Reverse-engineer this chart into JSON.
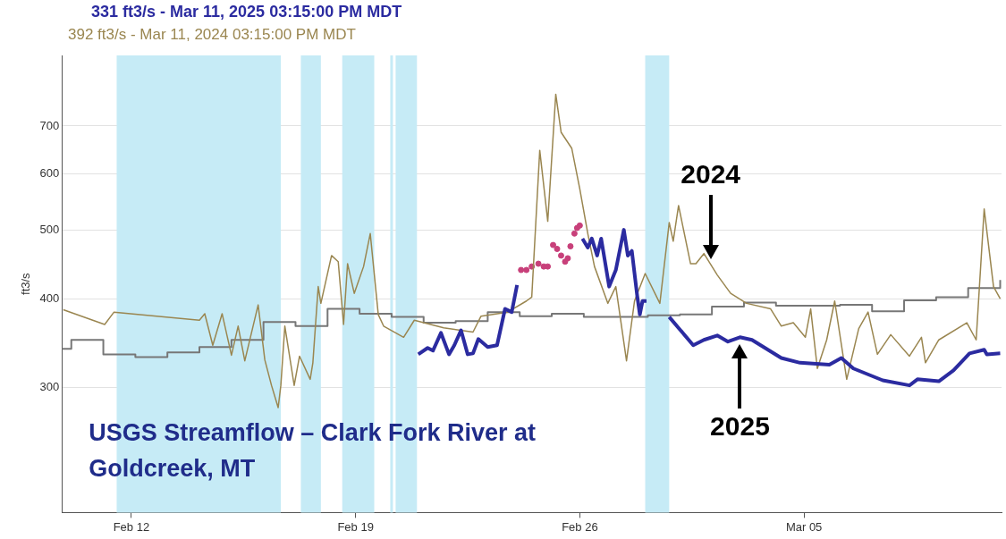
{
  "chart_data": {
    "type": "line",
    "ylabel": "ft3/s",
    "log": "y",
    "grid": "y",
    "legend": false,
    "marker": "none",
    "xlim": [
      "2025-02-09T20:00",
      "2025-03-11T04:00"
    ],
    "xticks": [
      {
        "value": "2025-02-12",
        "label": "Feb 12"
      },
      {
        "value": "2025-02-19",
        "label": "Feb 19"
      },
      {
        "value": "2025-02-26",
        "label": "Feb 26"
      },
      {
        "value": "2025-03-05",
        "label": "Mar 05"
      }
    ],
    "ylim": [
      200,
      880
    ],
    "yticks": [
      300,
      400,
      500,
      600,
      700
    ],
    "title": "USGS Streamflow – Clark Fork River at Goldcreek, MT",
    "annotations": [
      "331 ft3/s - Mar 11, 2025 03:15:00 PM MDT",
      "392 ft3/s - Mar 11, 2024 03:15:00 PM MDT",
      {
        "text": "2024",
        "x": "2025-03-02T02:00",
        "y": 447
      },
      {
        "text": "2025",
        "x": "2025-03-03T00:00",
        "y": 353
      }
    ],
    "bands": [
      {
        "axis": "x",
        "from": "2025-02-11T13:00",
        "to": "2025-02-16T16:00",
        "color": "#c6ebf6"
      },
      {
        "axis": "x",
        "from": "2025-02-17T07:00",
        "to": "2025-02-17T22:00",
        "color": "#c6ebf6"
      },
      {
        "axis": "x",
        "from": "2025-02-18T14:00",
        "to": "2025-02-19T14:00",
        "color": "#c6ebf6"
      },
      {
        "axis": "x",
        "from": "2025-02-20T02:00",
        "to": "2025-02-20T04:00",
        "color": "#c6ebf6"
      },
      {
        "axis": "x",
        "from": "2025-02-20T06:00",
        "to": "2025-02-20T22:00",
        "color": "#c6ebf6"
      },
      {
        "axis": "x",
        "from": "2025-02-28T01:00",
        "to": "2025-02-28T19:00",
        "color": "#c6ebf6"
      }
    ],
    "series": [
      {
        "type": "line",
        "color": "#2b2ba0",
        "x": [
          "2025-02-20T23:00",
          "2025-02-21T06:00",
          "2025-02-21T10:00",
          "2025-02-21T16:00",
          "2025-02-21T22:00",
          "2025-02-22T02:00",
          "2025-02-22T07:00",
          "2025-02-22T12:00",
          "2025-02-22T16:00",
          "2025-02-22T20:00",
          "2025-02-23T03:00",
          "2025-02-23T10:00",
          "2025-02-23T16:00",
          "2025-02-23T21:00",
          "2025-02-24T01:00",
          "2025-02-25T00:00",
          "2025-02-26T02:00",
          "2025-02-26T06:00",
          "2025-02-26T09:00",
          "2025-02-26T13:00",
          "2025-02-26T16:00",
          "2025-02-26T22:00",
          "2025-02-27T03:00",
          "2025-02-27T09:00",
          "2025-02-27T12:00",
          "2025-02-27T15:00",
          "2025-02-27T19:00",
          "2025-02-27T21:00",
          "2025-02-27T23:00",
          "2025-02-28T02:00",
          "2025-02-28T10:00",
          "2025-02-28T19:00",
          "2025-03-01T13:00",
          "2025-03-01T21:00",
          "2025-03-02T07:00",
          "2025-03-02T15:00",
          "2025-03-03T00:00",
          "2025-03-03T09:00",
          "2025-03-04T07:00",
          "2025-03-04T21:00",
          "2025-03-05T19:00",
          "2025-03-06T04:00",
          "2025-03-06T13:00",
          "2025-03-07T11:00",
          "2025-03-08T07:00",
          "2025-03-08T13:00",
          "2025-03-09T05:00",
          "2025-03-09T16:00",
          "2025-03-10T04:00",
          "2025-03-10T15:00",
          "2025-03-10T17:00",
          "2025-03-11T03:00"
        ],
        "values": [
          334,
          341,
          338,
          358,
          334,
          344,
          361,
          334,
          335,
          351,
          342,
          344,
          387,
          383,
          418,
          null,
          486,
          472,
          486,
          460,
          486,
          416,
          439,
          500,
          460,
          467,
          404,
          380,
          397,
          397,
          null,
          377,
          344,
          350,
          355,
          348,
          353,
          350,
          330,
          325,
          323,
          330,
          319,
          307,
          302,
          308,
          306,
          317,
          335,
          339,
          334,
          335
        ]
      },
      {
        "type": "line",
        "color": "#9a8650",
        "x": [
          "2025-02-09T21:00",
          "2025-02-11T04:00",
          "2025-02-11T11:00",
          "2025-02-14T03:00",
          "2025-02-14T07:00",
          "2025-02-14T13:00",
          "2025-02-14T20:00",
          "2025-02-15T03:00",
          "2025-02-15T08:00",
          "2025-02-15T13:00",
          "2025-02-15T23:00",
          "2025-02-16T04:00",
          "2025-02-16T09:00",
          "2025-02-16T14:00",
          "2025-02-16T16:00",
          "2025-02-16T19:00",
          "2025-02-17T02:00",
          "2025-02-17T06:00",
          "2025-02-17T14:00",
          "2025-02-17T16:00",
          "2025-02-17T20:00",
          "2025-02-17T22:00",
          "2025-02-18T06:00",
          "2025-02-18T11:00",
          "2025-02-18T15:00",
          "2025-02-18T18:00",
          "2025-02-18T23:00",
          "2025-02-19T06:00",
          "2025-02-19T11:00",
          "2025-02-19T17:00",
          "2025-02-19T21:00",
          "2025-02-20T12:00",
          "2025-02-20T20:00",
          "2025-02-21T18:00",
          "2025-02-22T16:00",
          "2025-02-22T22:00",
          "2025-02-23T18:00",
          "2025-02-24T08:00",
          "2025-02-24T12:00",
          "2025-02-24T18:00",
          "2025-02-25T00:00",
          "2025-02-25T06:00",
          "2025-02-25T10:00",
          "2025-02-25T18:00",
          "2025-02-26T00:00",
          "2025-02-26T06:00",
          "2025-02-26T11:00",
          "2025-02-26T21:00",
          "2025-02-27T03:00",
          "2025-02-27T11:00",
          "2025-02-27T17:00",
          "2025-02-28T01:00",
          "2025-02-28T12:00",
          "2025-02-28T19:00",
          "2025-02-28T22:00",
          "2025-03-01T02:00",
          "2025-03-01T11:00",
          "2025-03-01T15:00",
          "2025-03-01T21:00",
          "2025-03-02T07:00",
          "2025-03-02T17:00",
          "2025-03-03T05:00",
          "2025-03-03T23:00",
          "2025-03-04T07:00",
          "2025-03-04T16:00",
          "2025-03-05T01:00",
          "2025-03-05T05:00",
          "2025-03-05T10:00",
          "2025-03-05T17:00",
          "2025-03-05T23:00",
          "2025-03-06T08:00",
          "2025-03-06T17:00",
          "2025-03-07T00:00",
          "2025-03-07T07:00",
          "2025-03-07T17:00",
          "2025-03-08T07:00",
          "2025-03-08T16:00",
          "2025-03-08T19:00",
          "2025-03-09T05:00",
          "2025-03-10T02:00",
          "2025-03-10T09:00",
          "2025-03-10T15:00",
          "2025-03-10T22:00",
          "2025-03-11T03:00"
        ],
        "values": [
          386,
          368,
          383,
          373,
          381,
          344,
          381,
          333,
          366,
          327,
          392,
          328,
          302,
          281,
          302,
          366,
          302,
          332,
          308,
          325,
          416,
          394,
          460,
          451,
          368,
          448,
          407,
          444,
          494,
          380,
          366,
          353,
          373,
          364,
          359,
          378,
          383,
          397,
          402,
          647,
          514,
          776,
          686,
          651,
          571,
          494,
          444,
          394,
          416,
          327,
          397,
          434,
          394,
          512,
          482,
          541,
          448,
          448,
          463,
          432,
          407,
          394,
          387,
          366,
          370,
          353,
          387,
          319,
          350,
          397,
          308,
          363,
          383,
          334,
          356,
          332,
          353,
          325,
          350,
          370,
          350,
          535,
          416,
          400
        ]
      },
      {
        "type": "step",
        "color": "#777777",
        "x": [
          "2025-02-09T20:00",
          "2025-02-10T03:00",
          "2025-02-11T03:00",
          "2025-02-12T03:00",
          "2025-02-13T03:00",
          "2025-02-14T03:00",
          "2025-02-15T03:00",
          "2025-02-16T03:00",
          "2025-02-17T03:00",
          "2025-02-18T03:00",
          "2025-02-19T03:00",
          "2025-02-20T03:00",
          "2025-02-21T03:00",
          "2025-02-22T03:00",
          "2025-02-23T03:00",
          "2025-02-24T03:00",
          "2025-02-25T03:00",
          "2025-02-26T03:00",
          "2025-02-27T03:00",
          "2025-02-28T03:00",
          "2025-03-01T03:00",
          "2025-03-02T03:00",
          "2025-03-03T03:00",
          "2025-03-04T03:00",
          "2025-03-05T03:00",
          "2025-03-06T03:00",
          "2025-03-07T03:00",
          "2025-03-08T03:00",
          "2025-03-09T03:00",
          "2025-03-10T03:00",
          "2025-03-11T03:00"
        ],
        "values": [
          340,
          350,
          334,
          331,
          336,
          342,
          350,
          371,
          366,
          387,
          381,
          377,
          370,
          372,
          383,
          378,
          381,
          377,
          377,
          379,
          380,
          390,
          395,
          391,
          391,
          392,
          384,
          398,
          402,
          414,
          425
        ]
      },
      {
        "type": "scatter",
        "marker": "circle",
        "color": "#c8407a",
        "x": [
          "2025-02-24T04:00",
          "2025-02-24T08:00",
          "2025-02-24T12:00",
          "2025-02-24T17:00",
          "2025-02-24T21:00",
          "2025-02-25T00:00",
          "2025-02-25T04:00",
          "2025-02-25T07:00",
          "2025-02-25T10:00",
          "2025-02-25T13:00",
          "2025-02-25T15:00",
          "2025-02-25T17:00",
          "2025-02-25T20:00",
          "2025-02-25T22:00",
          "2025-02-26T00:00"
        ],
        "values": [
          439,
          439,
          444,
          448,
          444,
          444,
          476,
          470,
          460,
          451,
          456,
          474,
          494,
          503,
          507
        ]
      }
    ]
  }
}
